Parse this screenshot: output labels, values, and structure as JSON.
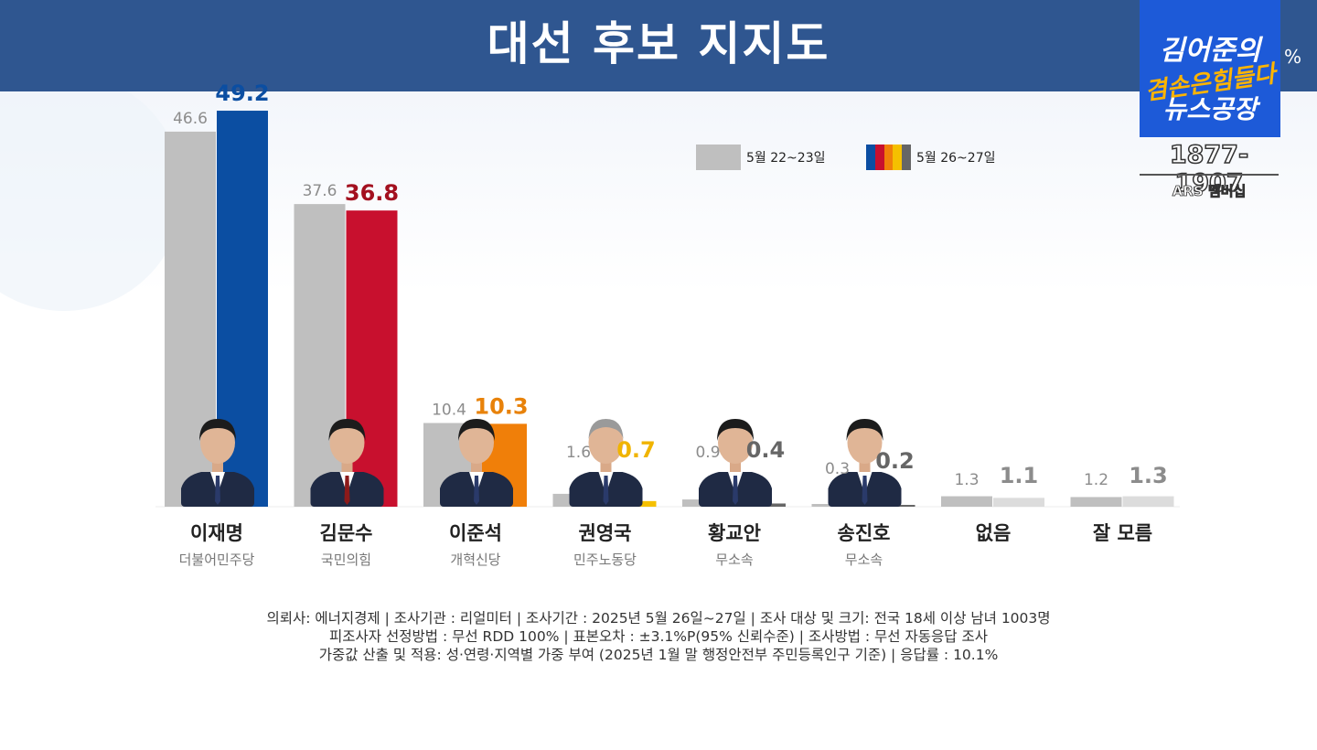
{
  "header": {
    "title": "대선 후보 지지도",
    "unit": "%",
    "bg_color": "#2f5690"
  },
  "logo": {
    "line1": "김어준의",
    "line2": "겸손은힘들다",
    "line3": "뉴스공장",
    "phone": "1877-1907",
    "ars": "ARS 멤버십"
  },
  "legend": [
    {
      "label": "5월 22~23일",
      "colors": [
        "#bfbfbf"
      ]
    },
    {
      "label": "5월 26~27일",
      "colors": [
        "#0b4ea2",
        "#c8102e",
        "#f07f09",
        "#f5c000",
        "#666666"
      ]
    }
  ],
  "chart_data": {
    "type": "bar",
    "title": "대선 후보 지지도",
    "categories": [
      "이재명",
      "김문수",
      "이준석",
      "권영국",
      "황교안",
      "송진호",
      "없음",
      "잘 모름"
    ],
    "subcategories": [
      "더불어민주당",
      "국민의힘",
      "개혁신당",
      "민주노동당",
      "무소속",
      "무소속",
      "",
      ""
    ],
    "series": [
      {
        "name": "5월 22~23일",
        "values": [
          46.6,
          37.6,
          10.4,
          1.6,
          0.9,
          0.3,
          1.3,
          1.2
        ],
        "color": "#bfbfbf"
      },
      {
        "name": "5월 26~27일",
        "values": [
          49.2,
          36.8,
          10.3,
          0.7,
          0.4,
          0.2,
          1.1,
          1.3
        ],
        "colors": [
          "#0b4ea2",
          "#c8102e",
          "#f07f09",
          "#f5c000",
          "#666666",
          "#666666",
          "#dcdcdc",
          "#dcdcdc"
        ],
        "label_colors": [
          "#0b4ea2",
          "#a3101f",
          "#e8820a",
          "#f0b400",
          "#666666",
          "#666666",
          "#8c8c8c",
          "#8c8c8c"
        ]
      }
    ],
    "ylim": [
      0,
      50
    ],
    "grid": false,
    "legend_position": "top-right"
  },
  "footnote": {
    "line1": "의뢰사: 에너지경제 | 조사기관 : 리얼미터 | 조사기간 : 2025년 5월 26일~27일 | 조사 대상 및 크기: 전국 18세 이상 남녀 1003명",
    "line2": "피조사자 선정방법 : 무선 RDD 100% | 표본오차 : ±3.1%P(95% 신뢰수준) | 조사방법 : 무선 자동응답 조사",
    "line3": "가중값 산출 및 적용: 성·연령·지역별 가중 부여 (2025년 1월 말 행정안전부 주민등록인구 기준) | 응답률 : 10.1%"
  }
}
